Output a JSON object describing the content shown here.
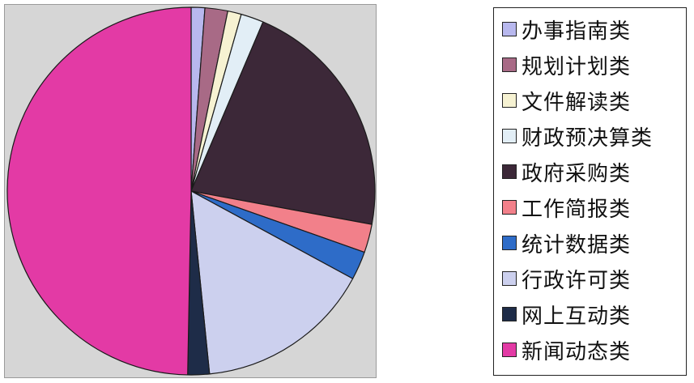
{
  "chart_data": {
    "type": "pie",
    "title": "",
    "start_angle_deg": 0,
    "direction": "clockwise",
    "legend_position": "right",
    "slices": [
      {
        "label": "办事指南类",
        "value": 1.2,
        "color": "#b8b8ee"
      },
      {
        "label": "规划计划类",
        "value": 2.0,
        "color": "#a86a86"
      },
      {
        "label": "文件解读类",
        "value": 1.2,
        "color": "#f6f2d2"
      },
      {
        "label": "财政预决算类",
        "value": 2.0,
        "color": "#e2eef6"
      },
      {
        "label": "政府采购类",
        "value": 21.5,
        "color": "#3c2838"
      },
      {
        "label": "工作简报类",
        "value": 2.5,
        "color": "#f2808a"
      },
      {
        "label": "统计数据类",
        "value": 2.5,
        "color": "#2e6cc8"
      },
      {
        "label": "行政许可类",
        "value": 15.5,
        "color": "#ccd0ee"
      },
      {
        "label": "网上互动类",
        "value": 1.9,
        "color": "#1e2c48"
      },
      {
        "label": "新闻动态类",
        "value": 49.7,
        "color": "#e33aa5"
      }
    ]
  }
}
